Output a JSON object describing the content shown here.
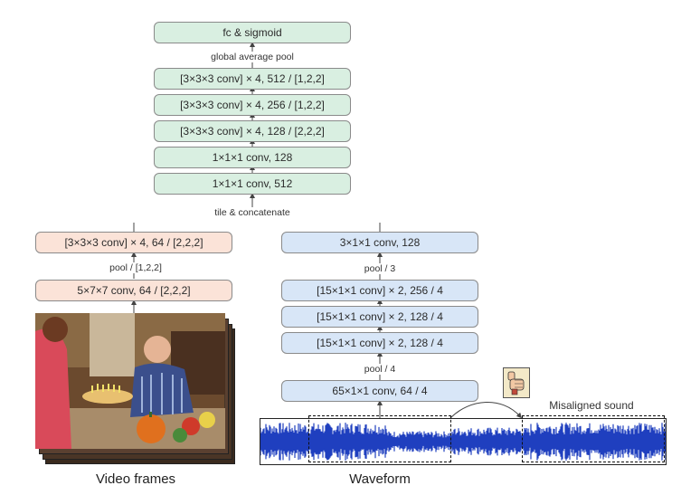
{
  "head": {
    "fc": "fc & sigmoid",
    "gap_label": "global average pool",
    "conv512": "[3×3×3 conv] × 4, 512  / [1,2,2]",
    "conv256": "[3×3×3 conv] × 4, 256  / [1,2,2]",
    "conv128": "[3×3×3 conv] × 4, 128  / [2,2,2]",
    "conv1_128": "1×1×1 conv, 128",
    "conv1_512": "1×1×1 conv, 512",
    "tile_label": "tile & concatenate"
  },
  "video": {
    "conv_top": "[3×3×3 conv] × 4, 64 / [2,2,2]",
    "pool_label": "pool / [1,2,2]",
    "conv_bottom": "5×7×7 conv, 64 / [2,2,2]",
    "caption": "Video frames"
  },
  "audio": {
    "conv3": "3×1×1 conv, 128",
    "pool3_label": "pool / 3",
    "conv256": "[15×1×1 conv] × 2,  256   / 4",
    "conv128a": "[15×1×1 conv] × 2,  128   / 4",
    "conv128b": "[15×1×1 conv] × 2,  128   / 4",
    "pool4_label": "pool / 4",
    "conv65": "65×1×1 conv, 64 / 4",
    "misaligned_label": "Misaligned sound",
    "caption": "Waveform"
  },
  "colors": {
    "green": "#d9efe1",
    "orange": "#fbe3d8",
    "blue": "#d8e6f7",
    "waveform": "#1f3fbf"
  },
  "icons": {
    "thumbs": "thumbs-down-hand-icon"
  }
}
